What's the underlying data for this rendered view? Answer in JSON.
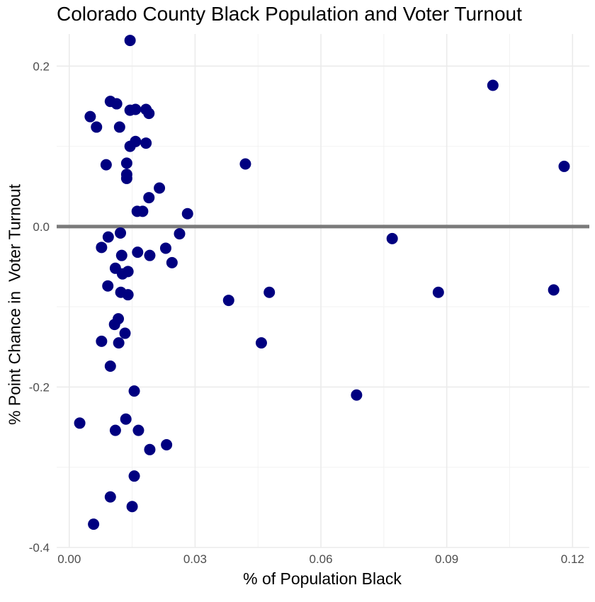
{
  "chart_data": {
    "type": "scatter",
    "title": "Colorado County Black Population and Voter Turnout",
    "xlabel": "% of Population Black",
    "ylabel": "% Point Chance in  Voter Turnout",
    "xlim": [
      -0.003,
      0.124
    ],
    "ylim": [
      -0.4,
      0.24
    ],
    "xticks": [
      0.0,
      0.03,
      0.06,
      0.09,
      0.12
    ],
    "xtick_labels": [
      "0.00",
      "0.03",
      "0.06",
      "0.09",
      "0.12"
    ],
    "yticks": [
      -0.4,
      -0.2,
      0.0,
      0.2
    ],
    "ytick_labels": [
      "-0.4",
      "-0.2",
      "0.0",
      "0.2"
    ],
    "grid": true,
    "reference_line_y": 0,
    "point_color": "#000080",
    "reference_line_color": "#7a7a7a",
    "points": [
      {
        "x": 0.0145,
        "y": 0.232
      },
      {
        "x": 0.101,
        "y": 0.176
      },
      {
        "x": 0.0098,
        "y": 0.156
      },
      {
        "x": 0.0113,
        "y": 0.153
      },
      {
        "x": 0.005,
        "y": 0.137
      },
      {
        "x": 0.0065,
        "y": 0.124
      },
      {
        "x": 0.012,
        "y": 0.124
      },
      {
        "x": 0.0145,
        "y": 0.145
      },
      {
        "x": 0.0158,
        "y": 0.146
      },
      {
        "x": 0.0183,
        "y": 0.146
      },
      {
        "x": 0.019,
        "y": 0.141
      },
      {
        "x": 0.0145,
        "y": 0.1
      },
      {
        "x": 0.0158,
        "y": 0.106
      },
      {
        "x": 0.0183,
        "y": 0.104
      },
      {
        "x": 0.0088,
        "y": 0.077
      },
      {
        "x": 0.0137,
        "y": 0.079
      },
      {
        "x": 0.0137,
        "y": 0.065
      },
      {
        "x": 0.0137,
        "y": 0.06
      },
      {
        "x": 0.042,
        "y": 0.078
      },
      {
        "x": 0.118,
        "y": 0.075
      },
      {
        "x": 0.0215,
        "y": 0.048
      },
      {
        "x": 0.019,
        "y": 0.036
      },
      {
        "x": 0.0162,
        "y": 0.019
      },
      {
        "x": 0.0175,
        "y": 0.019
      },
      {
        "x": 0.0282,
        "y": 0.016
      },
      {
        "x": 0.0263,
        "y": -0.009
      },
      {
        "x": 0.0122,
        "y": -0.008
      },
      {
        "x": 0.0093,
        "y": -0.013
      },
      {
        "x": 0.077,
        "y": -0.015
      },
      {
        "x": 0.0077,
        "y": -0.026
      },
      {
        "x": 0.023,
        "y": -0.027
      },
      {
        "x": 0.0163,
        "y": -0.032
      },
      {
        "x": 0.0125,
        "y": -0.036
      },
      {
        "x": 0.0192,
        "y": -0.036
      },
      {
        "x": 0.0245,
        "y": -0.045
      },
      {
        "x": 0.011,
        "y": -0.052
      },
      {
        "x": 0.014,
        "y": -0.056
      },
      {
        "x": 0.0127,
        "y": -0.059
      },
      {
        "x": 0.0092,
        "y": -0.074
      },
      {
        "x": 0.0123,
        "y": -0.082
      },
      {
        "x": 0.014,
        "y": -0.085
      },
      {
        "x": 0.088,
        "y": -0.082
      },
      {
        "x": 0.0477,
        "y": -0.082
      },
      {
        "x": 0.1155,
        "y": -0.079
      },
      {
        "x": 0.038,
        "y": -0.092
      },
      {
        "x": 0.0117,
        "y": -0.115
      },
      {
        "x": 0.0108,
        "y": -0.122
      },
      {
        "x": 0.0133,
        "y": -0.133
      },
      {
        "x": 0.0077,
        "y": -0.143
      },
      {
        "x": 0.0118,
        "y": -0.145
      },
      {
        "x": 0.0458,
        "y": -0.145
      },
      {
        "x": 0.0098,
        "y": -0.174
      },
      {
        "x": 0.0155,
        "y": -0.205
      },
      {
        "x": 0.0685,
        "y": -0.21
      },
      {
        "x": 0.0025,
        "y": -0.245
      },
      {
        "x": 0.0135,
        "y": -0.24
      },
      {
        "x": 0.011,
        "y": -0.254
      },
      {
        "x": 0.0165,
        "y": -0.254
      },
      {
        "x": 0.0232,
        "y": -0.272
      },
      {
        "x": 0.0192,
        "y": -0.278
      },
      {
        "x": 0.0155,
        "y": -0.311
      },
      {
        "x": 0.0098,
        "y": -0.337
      },
      {
        "x": 0.015,
        "y": -0.349
      },
      {
        "x": 0.0058,
        "y": -0.371
      }
    ]
  }
}
